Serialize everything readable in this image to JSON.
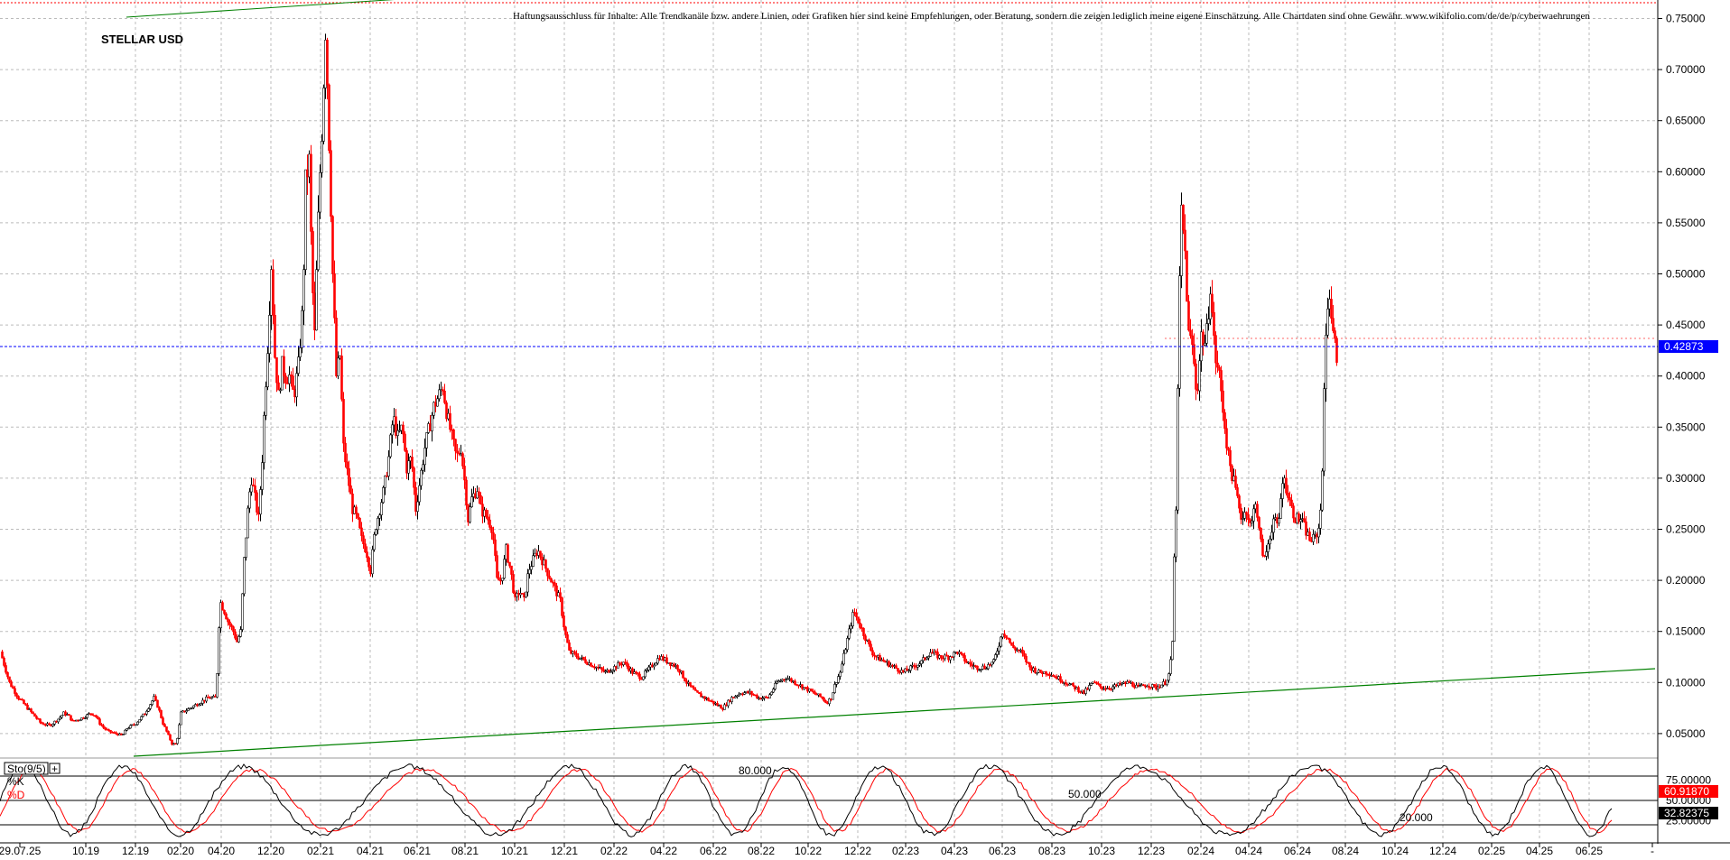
{
  "chart_data": [
    {
      "type": "candlestick",
      "title": "STELLAR USD",
      "disclaimer": "Haftungsausschluss für Inhalte: Alle Trendkanäle bzw. andere Linien, oder Grafiken hier sind keine Empfehlungen, oder Beratung, sondern die zeigen lediglich meine eigene Einschätzung. Alle Chartdaten sind ohne Gewähr. www.wikifolio.com/de/de/p/cyberwaehrungen",
      "y_ticks": [
        "0.75000",
        "0.70000",
        "0.65000",
        "0.60000",
        "0.55000",
        "0.50000",
        "0.45000",
        "0.40000",
        "0.35000",
        "0.30000",
        "0.25000",
        "0.20000",
        "0.15000",
        "0.10000",
        "0.05000"
      ],
      "ylim": [
        0.0,
        0.77
      ],
      "x_ticks": [
        "29.07.25",
        "10.19",
        "12.19",
        "02.20",
        "04.20",
        "12.20",
        "02.21",
        "04.21",
        "06.21",
        "08.21",
        "10.21",
        "12.21",
        "02.22",
        "04.22",
        "06.22",
        "08.22",
        "10.22",
        "12.22",
        "02.23",
        "04.23",
        "06.23",
        "08.23",
        "10.23",
        "12.23",
        "02.24",
        "04.24",
        "06.24",
        "08.24",
        "10.24",
        "12.24",
        "02.25",
        "04.25",
        "06.25",
        "-"
      ],
      "current_price": "0.42873",
      "grid": true,
      "colors": {
        "up": "#000000",
        "down": "#ff0000",
        "trendline": "#008000",
        "price_line": "#0000ff",
        "resistance": "#ff0000"
      },
      "price_path": [
        [
          0,
          0.13
        ],
        [
          10,
          0.1
        ],
        [
          20,
          0.085
        ],
        [
          30,
          0.075
        ],
        [
          40,
          0.065
        ],
        [
          45,
          0.06
        ],
        [
          55,
          0.058
        ],
        [
          65,
          0.065
        ],
        [
          70,
          0.07
        ],
        [
          75,
          0.068
        ],
        [
          80,
          0.062
        ],
        [
          90,
          0.065
        ],
        [
          100,
          0.07
        ],
        [
          105,
          0.068
        ],
        [
          110,
          0.06
        ],
        [
          115,
          0.055
        ],
        [
          120,
          0.052
        ],
        [
          128,
          0.05
        ],
        [
          135,
          0.048
        ],
        [
          140,
          0.055
        ],
        [
          150,
          0.06
        ],
        [
          160,
          0.07
        ],
        [
          170,
          0.085
        ],
        [
          175,
          0.075
        ],
        [
          180,
          0.06
        ],
        [
          185,
          0.05
        ],
        [
          190,
          0.04
        ],
        [
          195,
          0.04
        ],
        [
          200,
          0.07
        ],
        [
          210,
          0.075
        ],
        [
          220,
          0.08
        ],
        [
          230,
          0.085
        ],
        [
          238,
          0.085
        ],
        [
          240,
          0.11
        ],
        [
          243,
          0.18
        ],
        [
          248,
          0.17
        ],
        [
          252,
          0.16
        ],
        [
          258,
          0.15
        ],
        [
          262,
          0.14
        ],
        [
          266,
          0.15
        ],
        [
          270,
          0.22
        ],
        [
          275,
          0.28
        ],
        [
          278,
          0.3
        ],
        [
          282,
          0.28
        ],
        [
          286,
          0.26
        ],
        [
          290,
          0.32
        ],
        [
          293,
          0.38
        ],
        [
          296,
          0.43
        ],
        [
          300,
          0.51
        ],
        [
          304,
          0.42
        ],
        [
          308,
          0.38
        ],
        [
          312,
          0.41
        ],
        [
          316,
          0.4
        ],
        [
          320,
          0.4
        ],
        [
          325,
          0.38
        ],
        [
          330,
          0.41
        ],
        [
          335,
          0.47
        ],
        [
          338,
          0.59
        ],
        [
          342,
          0.61
        ],
        [
          345,
          0.5
        ],
        [
          348,
          0.44
        ],
        [
          350,
          0.5
        ],
        [
          353,
          0.58
        ],
        [
          356,
          0.64
        ],
        [
          360,
          0.74
        ],
        [
          362,
          0.69
        ],
        [
          365,
          0.6
        ],
        [
          368,
          0.5
        ],
        [
          372,
          0.4
        ],
        [
          376,
          0.42
        ],
        [
          380,
          0.33
        ],
        [
          385,
          0.3
        ],
        [
          390,
          0.27
        ],
        [
          395,
          0.26
        ],
        [
          400,
          0.24
        ],
        [
          405,
          0.23
        ],
        [
          410,
          0.21
        ],
        [
          415,
          0.25
        ],
        [
          420,
          0.27
        ],
        [
          425,
          0.29
        ],
        [
          430,
          0.32
        ],
        [
          435,
          0.36
        ],
        [
          440,
          0.34
        ],
        [
          445,
          0.35
        ],
        [
          450,
          0.31
        ],
        [
          455,
          0.32
        ],
        [
          460,
          0.27
        ],
        [
          465,
          0.3
        ],
        [
          470,
          0.33
        ],
        [
          475,
          0.35
        ],
        [
          480,
          0.37
        ],
        [
          485,
          0.38
        ],
        [
          490,
          0.39
        ],
        [
          495,
          0.36
        ],
        [
          500,
          0.34
        ],
        [
          505,
          0.32
        ],
        [
          510,
          0.33
        ],
        [
          515,
          0.29
        ],
        [
          518,
          0.26
        ],
        [
          522,
          0.28
        ],
        [
          528,
          0.29
        ],
        [
          532,
          0.27
        ],
        [
          540,
          0.26
        ],
        [
          545,
          0.25
        ],
        [
          550,
          0.2
        ],
        [
          555,
          0.2
        ],
        [
          560,
          0.23
        ],
        [
          565,
          0.21
        ],
        [
          570,
          0.18
        ],
        [
          575,
          0.19
        ],
        [
          580,
          0.18
        ],
        [
          585,
          0.21
        ],
        [
          590,
          0.22
        ],
        [
          595,
          0.23
        ],
        [
          600,
          0.22
        ],
        [
          605,
          0.21
        ],
        [
          610,
          0.2
        ],
        [
          615,
          0.19
        ],
        [
          620,
          0.18
        ],
        [
          625,
          0.15
        ],
        [
          630,
          0.13
        ],
        [
          640,
          0.125
        ],
        [
          650,
          0.12
        ],
        [
          660,
          0.115
        ],
        [
          670,
          0.11
        ],
        [
          680,
          0.115
        ],
        [
          690,
          0.12
        ],
        [
          700,
          0.11
        ],
        [
          710,
          0.105
        ],
        [
          720,
          0.115
        ],
        [
          730,
          0.125
        ],
        [
          740,
          0.12
        ],
        [
          750,
          0.115
        ],
        [
          760,
          0.1
        ],
        [
          770,
          0.09
        ],
        [
          780,
          0.085
        ],
        [
          790,
          0.08
        ],
        [
          800,
          0.075
        ],
        [
          810,
          0.085
        ],
        [
          820,
          0.09
        ],
        [
          830,
          0.09
        ],
        [
          840,
          0.085
        ],
        [
          850,
          0.085
        ],
        [
          860,
          0.1
        ],
        [
          870,
          0.105
        ],
        [
          880,
          0.1
        ],
        [
          890,
          0.095
        ],
        [
          900,
          0.09
        ],
        [
          910,
          0.085
        ],
        [
          915,
          0.08
        ],
        [
          920,
          0.085
        ],
        [
          925,
          0.1
        ],
        [
          930,
          0.11
        ],
        [
          935,
          0.13
        ],
        [
          940,
          0.15
        ],
        [
          945,
          0.17
        ],
        [
          950,
          0.16
        ],
        [
          955,
          0.15
        ],
        [
          960,
          0.14
        ],
        [
          965,
          0.13
        ],
        [
          970,
          0.125
        ],
        [
          980,
          0.12
        ],
        [
          990,
          0.115
        ],
        [
          1000,
          0.11
        ],
        [
          1010,
          0.115
        ],
        [
          1020,
          0.12
        ],
        [
          1030,
          0.13
        ],
        [
          1040,
          0.125
        ],
        [
          1050,
          0.125
        ],
        [
          1060,
          0.13
        ],
        [
          1070,
          0.12
        ],
        [
          1080,
          0.115
        ],
        [
          1090,
          0.115
        ],
        [
          1100,
          0.12
        ],
        [
          1110,
          0.15
        ],
        [
          1115,
          0.145
        ],
        [
          1120,
          0.135
        ],
        [
          1130,
          0.13
        ],
        [
          1140,
          0.115
        ],
        [
          1150,
          0.11
        ],
        [
          1160,
          0.11
        ],
        [
          1170,
          0.105
        ],
        [
          1180,
          0.1
        ],
        [
          1190,
          0.095
        ],
        [
          1200,
          0.09
        ],
        [
          1210,
          0.1
        ],
        [
          1220,
          0.095
        ],
        [
          1230,
          0.095
        ],
        [
          1240,
          0.098
        ],
        [
          1250,
          0.1
        ],
        [
          1260,
          0.095
        ],
        [
          1270,
          0.098
        ],
        [
          1280,
          0.095
        ],
        [
          1290,
          0.1
        ],
        [
          1295,
          0.11
        ],
        [
          1298,
          0.14
        ],
        [
          1300,
          0.22
        ],
        [
          1303,
          0.3
        ],
        [
          1305,
          0.46
        ],
        [
          1308,
          0.56
        ],
        [
          1312,
          0.52
        ],
        [
          1316,
          0.44
        ],
        [
          1320,
          0.43
        ],
        [
          1325,
          0.38
        ],
        [
          1330,
          0.44
        ],
        [
          1335,
          0.43
        ],
        [
          1340,
          0.49
        ],
        [
          1345,
          0.42
        ],
        [
          1350,
          0.4
        ],
        [
          1355,
          0.36
        ],
        [
          1360,
          0.32
        ],
        [
          1365,
          0.3
        ],
        [
          1370,
          0.28
        ],
        [
          1375,
          0.26
        ],
        [
          1380,
          0.27
        ],
        [
          1385,
          0.25
        ],
        [
          1390,
          0.28
        ],
        [
          1395,
          0.24
        ],
        [
          1400,
          0.22
        ],
        [
          1405,
          0.24
        ],
        [
          1410,
          0.26
        ],
        [
          1415,
          0.25
        ],
        [
          1420,
          0.3
        ],
        [
          1425,
          0.29
        ],
        [
          1430,
          0.27
        ],
        [
          1435,
          0.26
        ],
        [
          1440,
          0.26
        ],
        [
          1445,
          0.25
        ],
        [
          1450,
          0.24
        ],
        [
          1455,
          0.24
        ],
        [
          1460,
          0.25
        ],
        [
          1463,
          0.28
        ],
        [
          1466,
          0.38
        ],
        [
          1469,
          0.47
        ],
        [
          1472,
          0.48
        ],
        [
          1476,
          0.44
        ],
        [
          1480,
          0.42
        ]
      ]
    },
    {
      "type": "line",
      "title": "Sto(9/5)",
      "series": [
        {
          "name": "%K",
          "color": "#000000"
        },
        {
          "name": "%D",
          "color": "#ff0000"
        }
      ],
      "levels": [
        {
          "value": 80,
          "label": "80.000"
        },
        {
          "value": 50,
          "label": "50.000"
        },
        {
          "value": 20,
          "label": "20.000"
        }
      ],
      "y_ticks": [
        "75.00000",
        "50.00000",
        "25.00000"
      ],
      "ylim": [
        0,
        100
      ],
      "k_value": "60.91870",
      "d_value": "32.82375"
    }
  ]
}
